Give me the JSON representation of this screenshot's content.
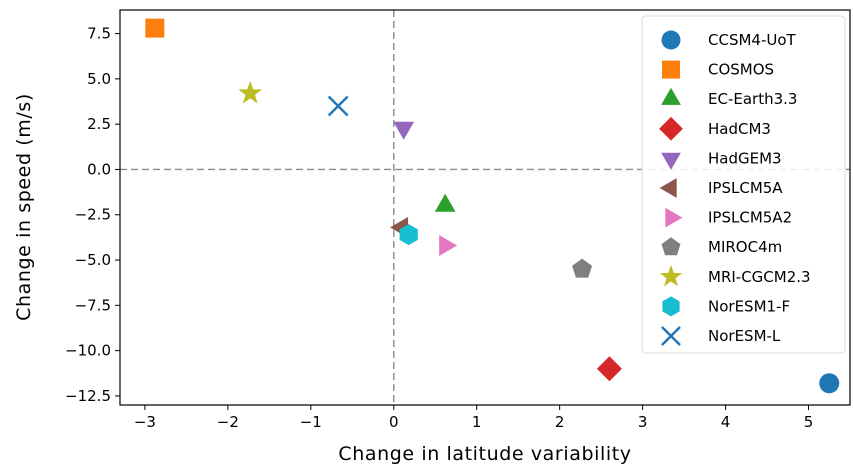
{
  "chart_data": {
    "type": "scatter",
    "title": "",
    "xlabel": "Change in latitude variability",
    "ylabel": "Change in speed (m/s)",
    "xlim": [
      -3.3,
      5.5
    ],
    "ylim": [
      -13.0,
      8.8
    ],
    "xticks": [
      -3,
      -2,
      -1,
      0,
      1,
      2,
      3,
      4,
      5
    ],
    "xtick_labels": [
      "−3",
      "−2",
      "−1",
      "0",
      "1",
      "2",
      "3",
      "4",
      "5"
    ],
    "yticks": [
      7.5,
      5.0,
      2.5,
      0.0,
      -2.5,
      -5.0,
      -7.5,
      -10.0,
      -12.5
    ],
    "ytick_labels": [
      "7.5",
      "5.0",
      "2.5",
      "0.0",
      "−2.5",
      "−5.0",
      "−7.5",
      "−10.0",
      "−12.5"
    ],
    "grid": false,
    "reference_lines": {
      "x": 0,
      "y": 0,
      "style": "dashed",
      "color": "#8c8c8c"
    },
    "legend_position": "right",
    "series": [
      {
        "name": "CCSM4-UoT",
        "marker": "circle",
        "color": "#1f77b4",
        "x": 5.25,
        "y": -11.8
      },
      {
        "name": "COSMOS",
        "marker": "square",
        "color": "#ff7f0e",
        "x": -2.88,
        "y": 7.8
      },
      {
        "name": "EC-Earth3.3",
        "marker": "triangle-up",
        "color": "#2ca02c",
        "x": 0.62,
        "y": -2.0
      },
      {
        "name": "HadCM3",
        "marker": "diamond",
        "color": "#d62728",
        "x": 2.6,
        "y": -11.0
      },
      {
        "name": "HadGEM3",
        "marker": "triangle-down",
        "color": "#9467bd",
        "x": 0.12,
        "y": 2.3
      },
      {
        "name": "IPSLCM5A",
        "marker": "triangle-left",
        "color": "#8c564b",
        "x": 0.1,
        "y": -3.2
      },
      {
        "name": "IPSLCM5A2",
        "marker": "triangle-right",
        "color": "#e377c2",
        "x": 0.62,
        "y": -4.2
      },
      {
        "name": "MIROC4m",
        "marker": "pentagon",
        "color": "#7f7f7f",
        "x": 2.27,
        "y": -5.5
      },
      {
        "name": "MRI-CGCM2.3",
        "marker": "star",
        "color": "#bcbd22",
        "x": -1.73,
        "y": 4.2
      },
      {
        "name": "NorESM1-F",
        "marker": "hexagon",
        "color": "#17becf",
        "x": 0.18,
        "y": -3.6
      },
      {
        "name": "NorESM-L",
        "marker": "x",
        "color": "#1f77b4",
        "x": -0.67,
        "y": 3.5
      }
    ]
  }
}
